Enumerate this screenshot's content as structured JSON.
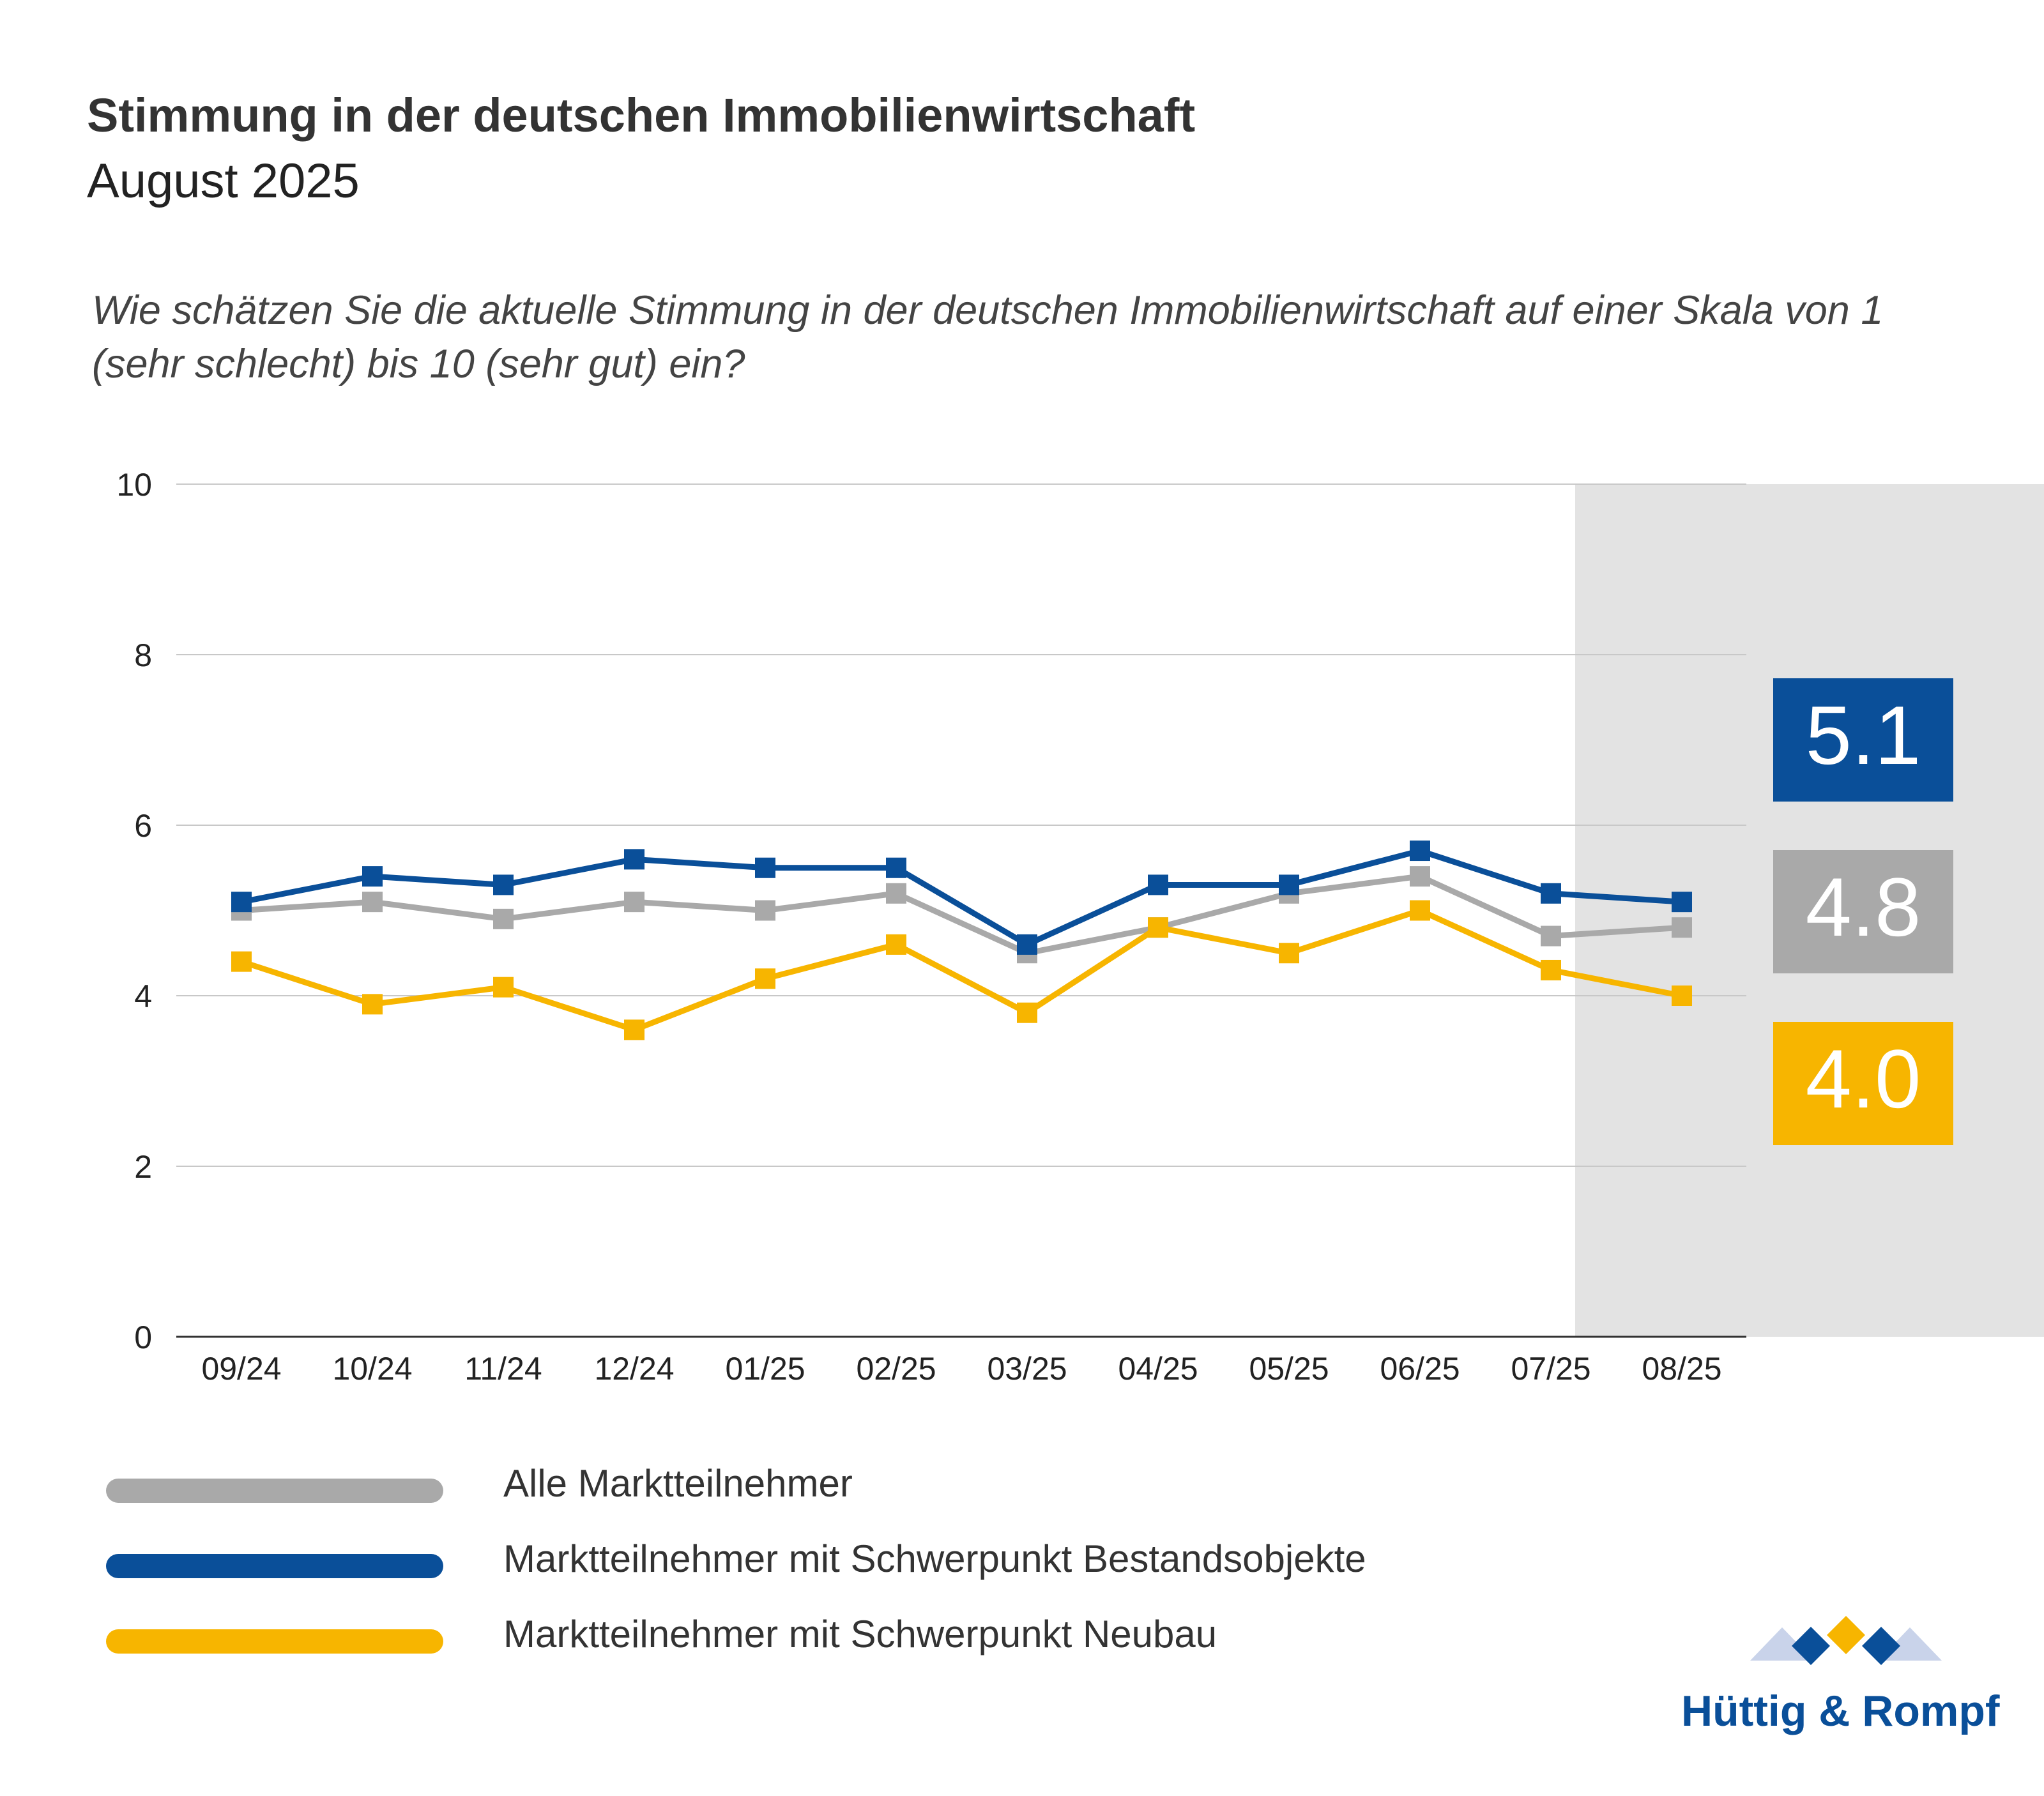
{
  "header": {
    "title": "Stimmung in der deutschen Immobilienwirtschaft",
    "subtitle": "August 2025",
    "question": "Wie schätzen Sie die aktuelle Stimmung in der deutschen Immobilienwirtschaft auf einer Skala von 1 (sehr schlecht) bis 10 (sehr gut) ein?"
  },
  "chart_data": {
    "type": "line",
    "categories": [
      "09/24",
      "10/24",
      "11/24",
      "12/24",
      "01/25",
      "02/25",
      "03/25",
      "04/25",
      "05/25",
      "06/25",
      "07/25",
      "08/25"
    ],
    "ylim": [
      0,
      10
    ],
    "yticks": [
      0,
      2,
      4,
      6,
      8,
      10
    ],
    "grid": true,
    "highlight_region": "last two months shaded grey",
    "series": [
      {
        "name": "Alle Marktteilnehmer",
        "color": "#a9a9a9",
        "values": [
          5.0,
          5.1,
          4.9,
          5.1,
          5.0,
          5.2,
          4.5,
          4.8,
          5.2,
          5.4,
          4.7,
          4.8
        ]
      },
      {
        "name": "Marktteilnehmer mit Schwerpunkt Bestandsobjekte",
        "color": "#0a4f99",
        "values": [
          5.1,
          5.4,
          5.3,
          5.6,
          5.5,
          5.5,
          4.6,
          5.3,
          5.3,
          5.7,
          5.2,
          5.1
        ]
      },
      {
        "name": "Marktteilnehmer mit Schwerpunkt Neubau",
        "color": "#f7b500",
        "values": [
          4.4,
          3.9,
          4.1,
          3.6,
          4.2,
          4.6,
          3.8,
          4.8,
          4.5,
          5.0,
          4.3,
          4.0
        ]
      }
    ],
    "current_values": [
      {
        "label": "5.1",
        "color": "#0a4f99"
      },
      {
        "label": "4.8",
        "color": "#a9a9a9"
      },
      {
        "label": "4.0",
        "color": "#f7b500"
      }
    ]
  },
  "legend": {
    "items": [
      {
        "label": "Alle Marktteilnehmer",
        "color": "#a9a9a9"
      },
      {
        "label": "Marktteilnehmer mit Schwerpunkt Bestandsobjekte",
        "color": "#0a4f99"
      },
      {
        "label": "Marktteilnehmer mit Schwerpunkt Neubau",
        "color": "#f7b500"
      }
    ]
  },
  "brand": {
    "name": "Hüttig & Rompf",
    "logo_icon": "diamond-logo-icon"
  }
}
